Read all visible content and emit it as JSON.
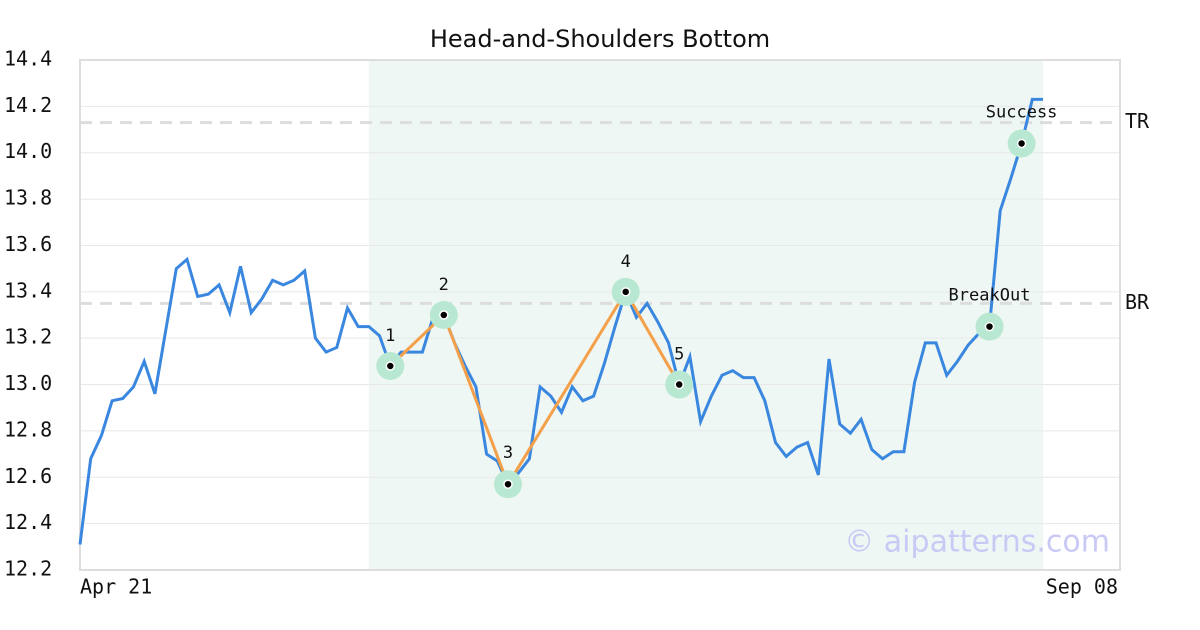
{
  "chart_data": {
    "type": "line",
    "title": "Head-and-Shoulders Bottom",
    "categories": [
      "Apr 21",
      null,
      null,
      null,
      null,
      null,
      null,
      null,
      null,
      null,
      null,
      null,
      null,
      null,
      null,
      null,
      null,
      null,
      null,
      null,
      null,
      null,
      null,
      null,
      null,
      null,
      null,
      null,
      null,
      null,
      null,
      null,
      null,
      null,
      null,
      null,
      null,
      null,
      null,
      null,
      null,
      null,
      null,
      null,
      null,
      null,
      null,
      null,
      null,
      null,
      null,
      null,
      null,
      null,
      null,
      null,
      null,
      null,
      null,
      null,
      null,
      null,
      null,
      null,
      null,
      null,
      null,
      null,
      null,
      null,
      null,
      null,
      null,
      null,
      null,
      null,
      null,
      null,
      null,
      null,
      null,
      null,
      null,
      null,
      null,
      null,
      null,
      null,
      null,
      null,
      "Sep 08"
    ],
    "series": [
      {
        "color": "#3a87e0",
        "values": [
          12.31,
          12.68,
          12.78,
          12.93,
          12.94,
          12.99,
          13.1,
          12.96,
          13.23,
          13.5,
          13.54,
          13.38,
          13.39,
          13.43,
          13.31,
          13.51,
          13.31,
          13.37,
          13.45,
          13.43,
          13.45,
          13.49,
          13.2,
          13.14,
          13.16,
          13.33,
          13.25,
          13.25,
          13.21,
          13.08,
          13.14,
          13.14,
          13.14,
          13.29,
          13.3,
          13.18,
          13.08,
          12.99,
          12.7,
          12.67,
          12.57,
          12.62,
          12.68,
          12.99,
          12.95,
          12.88,
          12.99,
          12.93,
          12.95,
          13.09,
          13.25,
          13.4,
          13.29,
          13.35,
          13.27,
          13.18,
          13.0,
          13.12,
          12.84,
          12.95,
          13.04,
          13.06,
          13.03,
          13.03,
          12.93,
          12.75,
          12.69,
          12.73,
          12.75,
          12.61,
          13.11,
          12.83,
          12.79,
          12.85,
          12.72,
          12.68,
          12.71,
          12.71,
          13.01,
          13.18,
          13.18,
          13.04,
          13.1,
          13.17,
          13.22,
          13.25,
          13.75,
          13.89,
          14.04,
          14.23,
          14.23
        ]
      }
    ],
    "ylim": [
      12.2,
      14.4
    ],
    "yticks": [
      12.2,
      12.4,
      12.6,
      12.8,
      {
        "value": 13.0,
        "label": "13.0"
      },
      13.2,
      13.4,
      13.6,
      13.8,
      {
        "value": 14.0,
        "label": "14.0"
      },
      14.2,
      14.4
    ],
    "grid": true,
    "highlight_range": [
      27,
      90
    ],
    "pattern": {
      "color": "#f4a04a",
      "points": [
        {
          "label": "1",
          "x": 29,
          "y": 13.08
        },
        {
          "label": "2",
          "x": 34,
          "y": 13.3
        },
        {
          "label": "3",
          "x": 40,
          "y": 12.57
        },
        {
          "label": "4",
          "x": 51,
          "y": 13.4
        },
        {
          "label": "5",
          "x": 56,
          "y": 13.0
        }
      ]
    },
    "signals": [
      {
        "label": "BreakOut",
        "x": 85,
        "y": 13.25
      },
      {
        "label": "Success",
        "x": 88,
        "y": 14.04
      }
    ],
    "levels": [
      {
        "label": "TR",
        "value": 14.13
      },
      {
        "label": "BR",
        "value": 13.35
      }
    ],
    "watermark": "© aipatterns.com"
  }
}
